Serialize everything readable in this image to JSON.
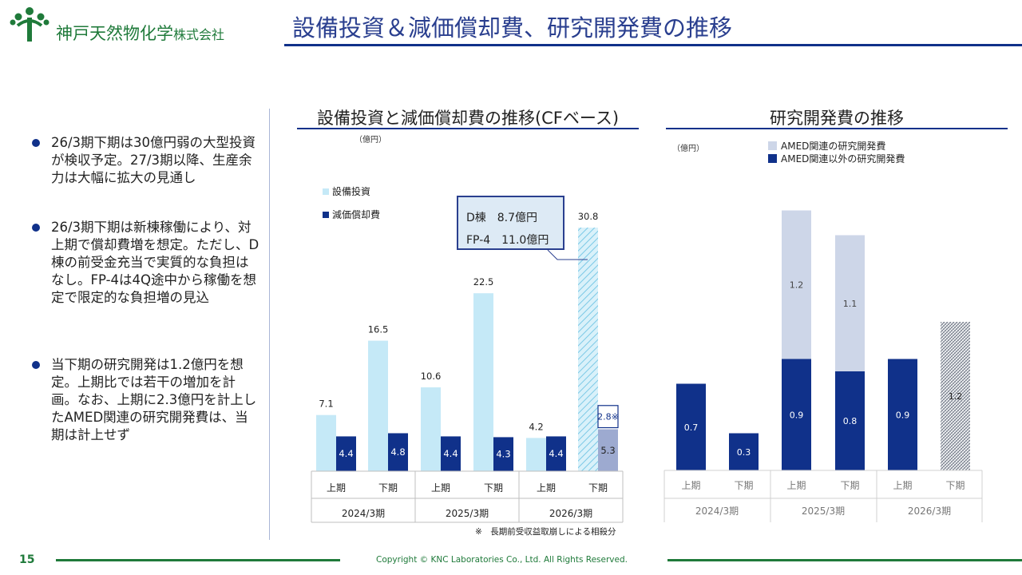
{
  "header": {
    "company_name": "神戸天然物化学",
    "company_suffix": "株式会社",
    "page_title": "設備投資＆減価償却費、研究開発費の推移"
  },
  "bullets": [
    "26/3期下期は30億円弱の大型投資が検収予定。27/3期以降、生産余力は大幅に拡大の見通し",
    "26/3期下期は新棟稼働により、対上期で償却費増を想定。ただし、D棟の前受金充当で実質的な負担はなし。FP-4は4Q途中から稼働を想定で限定的な負担増の見込",
    "当下期の研究開発は1.2億円を想定。上期比では若干の増加を計画。なお、上期に2.3億円を計上したAMED関連の研究開発費は、当期は計上せず"
  ],
  "callout": {
    "line1": "D棟　8.7億円",
    "line2": "FP-4　11.0億円"
  },
  "chart_data": [
    {
      "type": "bar",
      "title": "設備投資と減価償却費の推移(CFベース)",
      "unit": "（億円）",
      "categories": [
        "上期",
        "下期",
        "上期",
        "下期",
        "上期",
        "下期"
      ],
      "groups": [
        "2024/3期",
        "2025/3期",
        "2026/3期"
      ],
      "series": [
        {
          "name": "設備投資",
          "color": "#c5e9f7",
          "values": [
            7.1,
            16.5,
            10.6,
            22.5,
            4.2,
            30.8
          ]
        },
        {
          "name": "減価償却費",
          "color": "#10318a",
          "values": [
            4.4,
            4.8,
            4.4,
            4.3,
            4.4,
            5.3
          ],
          "extra_stack_last": 2.8
        }
      ],
      "extra_label": "2.8※",
      "footnote": "※　長期前受収益取崩しによる相殺分",
      "ylim": [
        0,
        35
      ]
    },
    {
      "type": "bar",
      "title": "研究開発費の推移",
      "unit": "（億円）",
      "categories": [
        "上期",
        "下期",
        "上期",
        "下期",
        "上期",
        "下期"
      ],
      "groups": [
        "2024/3期",
        "2025/3期",
        "2026/3期"
      ],
      "series": [
        {
          "name": "AMED関連の研究開発費",
          "color": "#cdd6e8",
          "values": [
            0,
            0,
            1.2,
            1.1,
            0,
            0
          ]
        },
        {
          "name": "AMED関連以外の研究開発費",
          "color": "#10318a",
          "values": [
            0.7,
            0.3,
            0.9,
            0.8,
            0.9,
            1.2
          ]
        }
      ],
      "ylim": [
        0,
        2.5
      ]
    }
  ],
  "footer": {
    "page_number": "15",
    "copyright": "Copyright © KNC Laboratories Co., Ltd. All Rights Reserved."
  }
}
